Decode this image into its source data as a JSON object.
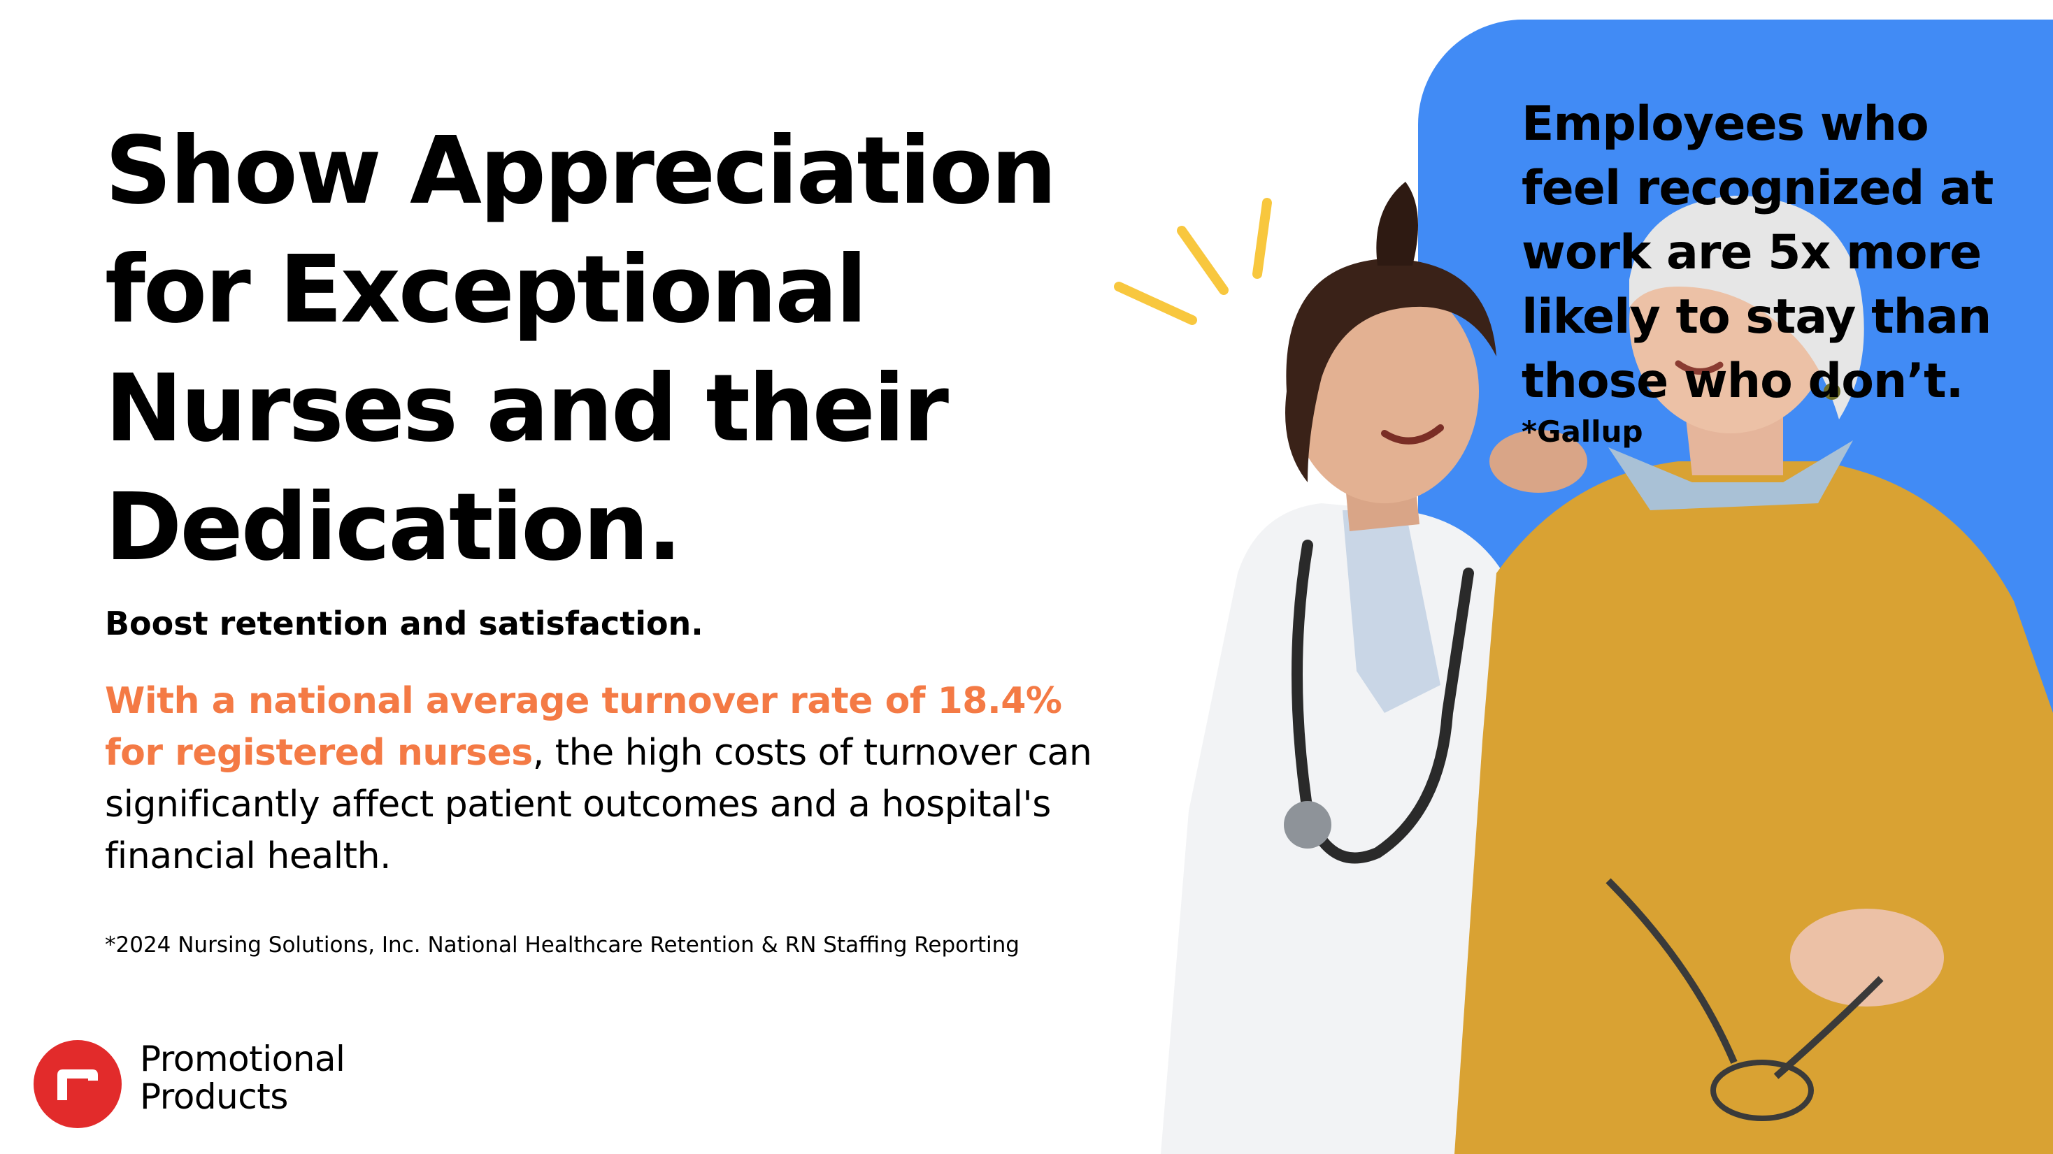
{
  "headline": {
    "lines": [
      "Show Appreciation",
      "for Exceptional",
      "Nurses and their",
      "Dedication."
    ]
  },
  "subheadline": "Boost retention and satisfaction.",
  "body": {
    "highlight_part_1": "With a national average turnover rate of 18.4%",
    "highlight_part_2": "for registered nurses",
    "rest": ", the high costs of turnover can significantly affect patient outcomes and a hospital's financial health."
  },
  "footnote": "*2024 Nursing Solutions, Inc. National Healthcare Retention & RN Staffing Reporting",
  "brand": {
    "name_line_1": "Promotional",
    "name_line_2": "Products",
    "logo_icon": "brand-logo-icon"
  },
  "stat_callout": {
    "lines": [
      "Employees who",
      "feel recognized at",
      "work are 5x more",
      "likely to stay than",
      "those who don’t."
    ],
    "source": "*Gallup"
  },
  "colors": {
    "highlight_orange": "#F47A45",
    "panel_blue": "#418BF5",
    "logo_red": "#E22B2B",
    "sparkle_yellow": "#F8C73E",
    "text_black": "#000000"
  }
}
